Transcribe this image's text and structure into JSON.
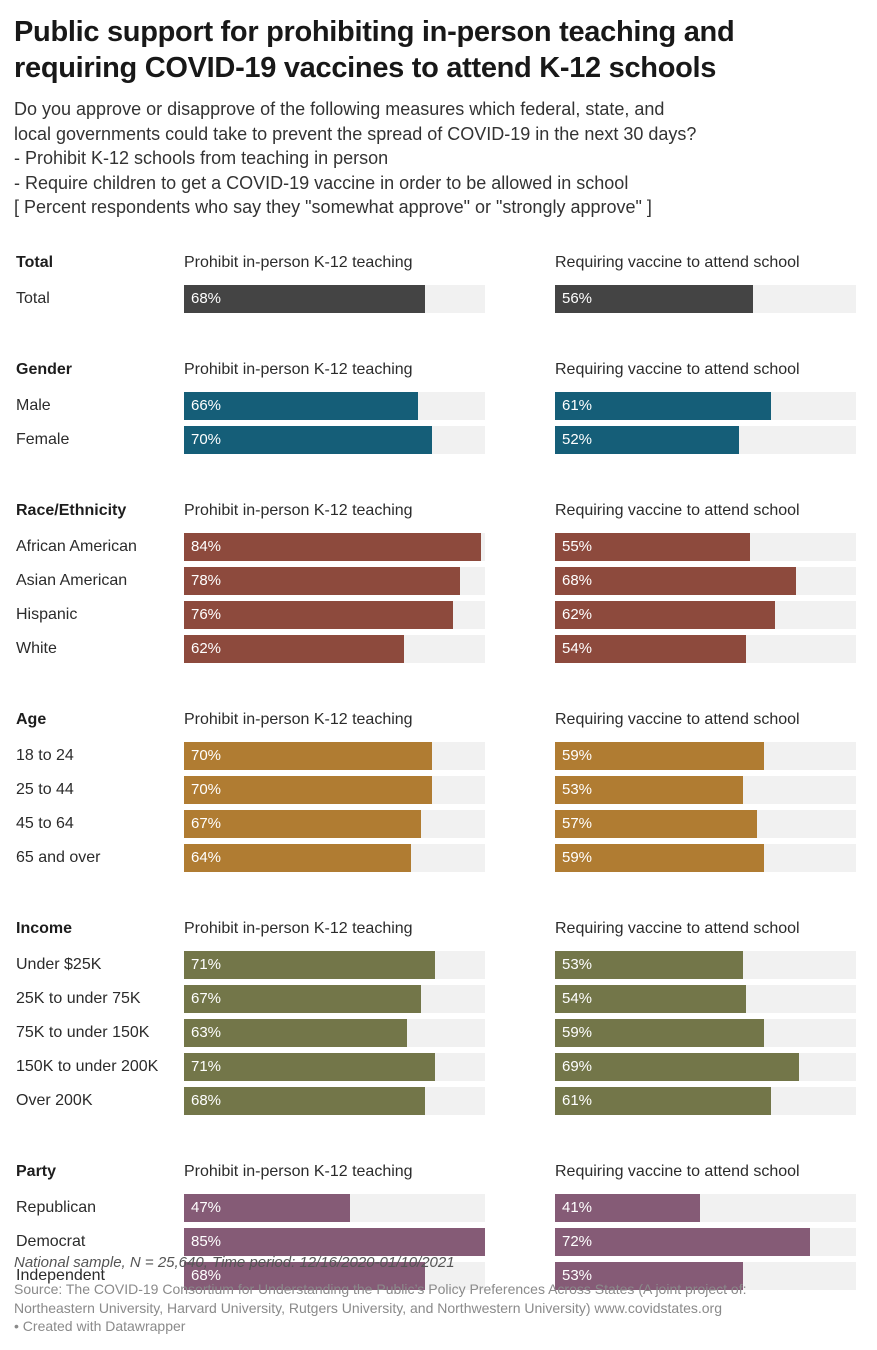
{
  "title_line1": "Public support for prohibiting in-person teaching and",
  "title_line2": "requiring COVID-19 vaccines to attend K-12 schools",
  "description": [
    "Do you approve or disapprove of the following measures which federal, state, and",
    "local governments could take to prevent the spread of COVID-19 in the next 30 days?",
    "- Prohibit K-12 schools from teaching in person",
    "- Require children to get a COVID-19 vaccine in order to be allowed in school",
    "[ Percent respondents who say they \"somewhat approve\" or \"strongly approve\" ]"
  ],
  "notes": "National sample, N = 25,640, Time period: 12/16/2020-01/10/2021",
  "source_line1": "Source: The COVID-19 Consortium for Understanding the Public’s Policy Preferences Across States (A joint project of:",
  "source_line2": "Northeastern University, Harvard University, Rutgers University, and Northwestern University) www.covidstates.org",
  "credit": "• Created with Datawrapper",
  "chart_data": {
    "type": "bar",
    "orientation": "horizontal",
    "xlim": [
      0,
      85
    ],
    "value_suffix": "%",
    "columns": [
      "Prohibit in-person K-12 teaching",
      "Requiring vaccine to attend school"
    ],
    "background_bar_color": "#f1f1f1",
    "groups": [
      {
        "name": "Total",
        "color": "#444444",
        "rows": [
          {
            "label": "Total",
            "values": [
              68,
              56
            ]
          }
        ]
      },
      {
        "name": "Gender",
        "color": "#155e78",
        "rows": [
          {
            "label": "Male",
            "values": [
              66,
              61
            ]
          },
          {
            "label": "Female",
            "values": [
              70,
              52
            ]
          }
        ]
      },
      {
        "name": "Race/Ethnicity",
        "color": "#8d4a3d",
        "rows": [
          {
            "label": "African American",
            "values": [
              84,
              55
            ]
          },
          {
            "label": "Asian American",
            "values": [
              78,
              68
            ]
          },
          {
            "label": "Hispanic",
            "values": [
              76,
              62
            ]
          },
          {
            "label": "White",
            "values": [
              62,
              54
            ]
          }
        ]
      },
      {
        "name": "Age",
        "color": "#b07c32",
        "rows": [
          {
            "label": "18 to 24",
            "values": [
              70,
              59
            ]
          },
          {
            "label": "25 to 44",
            "values": [
              70,
              53
            ]
          },
          {
            "label": "45 to 64",
            "values": [
              67,
              57
            ]
          },
          {
            "label": "65 and over",
            "values": [
              64,
              59
            ]
          }
        ]
      },
      {
        "name": "Income",
        "color": "#737649",
        "rows": [
          {
            "label": "Under $25K",
            "values": [
              71,
              53
            ]
          },
          {
            "label": "25K to under 75K",
            "values": [
              67,
              54
            ]
          },
          {
            "label": "75K to under 150K",
            "values": [
              63,
              59
            ]
          },
          {
            "label": "150K to under 200K",
            "values": [
              71,
              69
            ]
          },
          {
            "label": "Over 200K",
            "values": [
              68,
              61
            ]
          }
        ]
      },
      {
        "name": "Party",
        "color": "#855b76",
        "rows": [
          {
            "label": "Republican",
            "values": [
              47,
              41
            ]
          },
          {
            "label": "Democrat",
            "values": [
              85,
              72
            ]
          },
          {
            "label": "Independent",
            "values": [
              68,
              53
            ]
          }
        ]
      }
    ]
  }
}
